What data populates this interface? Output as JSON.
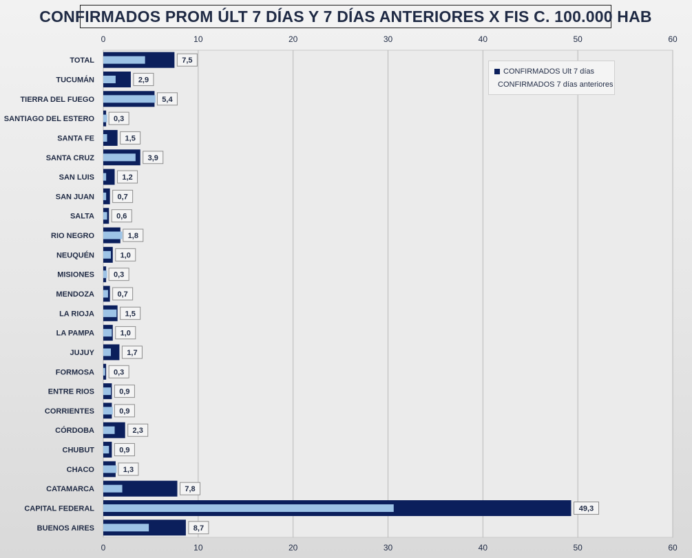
{
  "colors": {
    "ult7": "#0b1f5c",
    "ant7": "#9dc3e6",
    "grid": "#b7b7b7",
    "label_text": "#1f2a44"
  },
  "chart_data": {
    "type": "bar",
    "orientation": "horizontal",
    "title": "CONFIRMADOS PROM ÚLT 7 DÍAS Y 7 DÍAS ANTERIORES X FIS C. 100.000 HAB",
    "xlim": [
      0,
      60
    ],
    "xticks": [
      0,
      10,
      20,
      30,
      40,
      50,
      60
    ],
    "grid": true,
    "legend_position": "top-right",
    "categories": [
      "TOTAL",
      "TUCUMÁN",
      "TIERRA  DEL FUEGO",
      "SANTIAGO  DEL ESTERO",
      "SANTA FE",
      "SANTA CRUZ",
      "SAN LUIS",
      "SAN JUAN",
      "SALTA",
      "RIO NEGRO",
      "NEUQUÉN",
      "MISIONES",
      "MENDOZA",
      "LA RIOJA",
      "LA PAMPA",
      "JUJUY",
      "FORMOSA",
      "ENTRE RIOS",
      "CORRIENTES",
      "CÓRDOBA",
      "CHUBUT",
      "CHACO",
      "CATAMARCA",
      "CAPITAL FEDERAL",
      "BUENOS AIRES"
    ],
    "series": [
      {
        "name": "CONFIRMADOS Ult 7 días",
        "values": [
          7.5,
          2.9,
          5.4,
          0.3,
          1.5,
          3.9,
          1.2,
          0.7,
          0.6,
          1.8,
          1.0,
          0.3,
          0.7,
          1.5,
          1.0,
          1.7,
          0.3,
          0.9,
          0.9,
          2.3,
          0.9,
          1.3,
          7.8,
          49.3,
          8.7
        ],
        "labels": [
          "7,5",
          "2,9",
          "5,4",
          "0,3",
          "1,5",
          "3,9",
          "1,2",
          "0,7",
          "0,6",
          "1,8",
          "1,0",
          "0,3",
          "0,7",
          "1,5",
          "1,0",
          "1,7",
          "0,3",
          "0,9",
          "0,9",
          "2,3",
          "0,9",
          "1,3",
          "7,8",
          "49,3",
          "8,7"
        ]
      },
      {
        "name": "CONFIRMADOS 7 días anteriores",
        "values": [
          4.4,
          1.3,
          5.5,
          0.4,
          0.4,
          3.4,
          0.3,
          0.3,
          0.4,
          2.0,
          0.8,
          0.4,
          0.5,
          1.4,
          0.9,
          0.8,
          0.2,
          0.8,
          1.0,
          1.2,
          0.6,
          1.4,
          2.0,
          30.6,
          4.8
        ]
      }
    ]
  }
}
